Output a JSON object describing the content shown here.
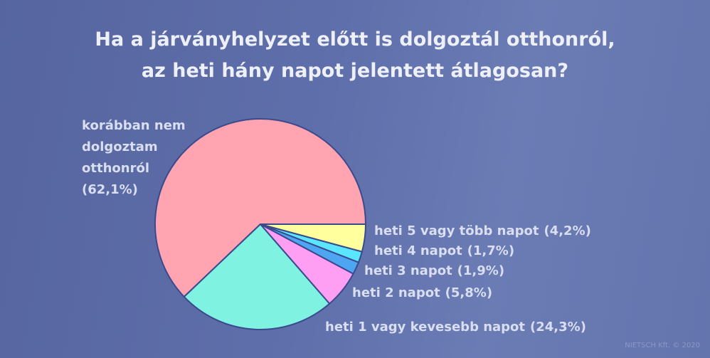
{
  "chart_data": {
    "type": "pie",
    "title": "Ha a járványhelyzet előtt is dolgoztál otthonról,\naz heti hány napot jelentett átlagosan?",
    "categories": [
      "korábban nem\ndolgoztam\notthonról",
      "heti 1 vagy kevesebb napot",
      "heti 2 napot",
      "heti 3 napot",
      "heti 4 napot",
      "heti 5 vagy több napot"
    ],
    "values": [
      62.1,
      24.3,
      5.8,
      1.9,
      1.7,
      4.2
    ],
    "value_labels": [
      "(62,1%)",
      "(24,3%)",
      "(5,8%)",
      "(1,9%)",
      "(1,7%)",
      "(4,2%)"
    ],
    "colors": [
      "#ffa4b0",
      "#80f2e2",
      "#ff9ff4",
      "#4ea6f2",
      "#5ae6ff",
      "#ffff9e"
    ],
    "source": "NIETSCH Kft. © 2020"
  }
}
